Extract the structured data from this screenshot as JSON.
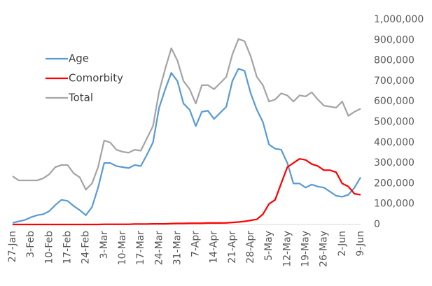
{
  "chart_data": {
    "type": "line",
    "categories": [
      "27-Jan",
      null,
      null,
      "3-Feb",
      null,
      null,
      "10-Feb",
      null,
      null,
      "17-Feb",
      null,
      null,
      "24-Feb",
      null,
      null,
      "3-Mar",
      null,
      null,
      "10-Mar",
      null,
      null,
      "17-Mar",
      null,
      null,
      "24-Mar",
      null,
      null,
      "31-Mar",
      null,
      null,
      "7-Apr",
      null,
      null,
      "14-Apr",
      null,
      null,
      "21-Apr",
      null,
      null,
      "28-Apr",
      null,
      null,
      "5-May",
      null,
      null,
      "12-May",
      null,
      null,
      "19-May",
      null,
      null,
      "26-May",
      null,
      null,
      "2-Jun",
      null,
      null,
      "9-Jun"
    ],
    "series": [
      {
        "name": "Age",
        "color": "#5b9bd5",
        "values": [
          8000,
          15000,
          22000,
          35000,
          45000,
          50000,
          65000,
          95000,
          120000,
          115000,
          90000,
          70000,
          45000,
          85000,
          180000,
          300000,
          300000,
          285000,
          280000,
          275000,
          290000,
          285000,
          340000,
          400000,
          570000,
          660000,
          740000,
          700000,
          590000,
          560000,
          480000,
          550000,
          555000,
          515000,
          545000,
          575000,
          700000,
          760000,
          750000,
          640000,
          560000,
          500000,
          390000,
          370000,
          365000,
          300000,
          200000,
          200000,
          180000,
          195000,
          185000,
          180000,
          160000,
          140000,
          135000,
          145000,
          180000,
          230000
        ]
      },
      {
        "name": "Comorbity",
        "color": "#ff0000",
        "values": [
          0,
          0,
          0,
          0,
          0,
          0,
          0,
          0,
          0,
          0,
          0,
          0,
          0,
          0,
          0,
          1000,
          1000,
          1000,
          1000,
          1000,
          2000,
          2000,
          2000,
          3000,
          3000,
          3000,
          4000,
          5000,
          5000,
          6000,
          6000,
          6000,
          7000,
          7000,
          7000,
          8000,
          10000,
          12000,
          15000,
          20000,
          25000,
          50000,
          100000,
          120000,
          200000,
          280000,
          300000,
          320000,
          315000,
          295000,
          285000,
          265000,
          265000,
          255000,
          200000,
          185000,
          150000,
          145000
        ]
      },
      {
        "name": "Total",
        "color": "#a5a5a5",
        "values": [
          235000,
          215000,
          215000,
          215000,
          215000,
          225000,
          245000,
          280000,
          290000,
          290000,
          250000,
          230000,
          170000,
          200000,
          280000,
          410000,
          400000,
          365000,
          355000,
          350000,
          365000,
          360000,
          420000,
          480000,
          650000,
          760000,
          860000,
          800000,
          700000,
          660000,
          590000,
          680000,
          680000,
          660000,
          690000,
          720000,
          830000,
          905000,
          895000,
          820000,
          720000,
          680000,
          600000,
          610000,
          640000,
          630000,
          600000,
          630000,
          625000,
          645000,
          610000,
          580000,
          575000,
          570000,
          600000,
          530000,
          550000,
          565000
        ]
      }
    ],
    "ylim": [
      0,
      1000000
    ],
    "yticks": [
      0,
      {
        "value": 100000,
        "label": "100,000"
      },
      {
        "value": 200000,
        "label": "200,000"
      },
      {
        "value": 300000,
        "label": "300,000"
      },
      {
        "value": 400000,
        "label": "400,000"
      },
      {
        "value": 500000,
        "label": "500,000"
      },
      {
        "value": 600000,
        "label": "600,000"
      },
      {
        "value": 700000,
        "label": "700,000"
      },
      {
        "value": 800000,
        "label": "800,000"
      },
      {
        "value": 900000,
        "label": "900,000"
      },
      {
        "value": 1000000,
        "label": "1,000,000"
      }
    ],
    "grid": false,
    "legend": "upper-left"
  }
}
